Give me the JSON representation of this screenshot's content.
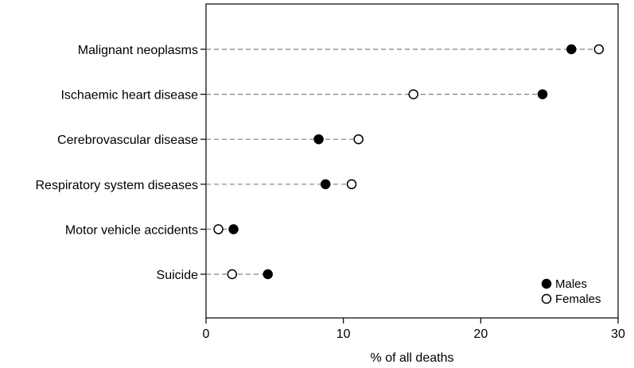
{
  "chart_data": {
    "type": "scatter",
    "categories": [
      "Malignant neoplasms",
      "Ischaemic heart disease",
      "Cerebrovascular disease",
      "Respiratory system diseases",
      "Motor vehicle accidents",
      "Suicide"
    ],
    "series": [
      {
        "name": "Males",
        "marker": "filled",
        "values": [
          26.6,
          24.5,
          8.2,
          8.7,
          2.0,
          4.5
        ]
      },
      {
        "name": "Females",
        "marker": "open",
        "values": [
          28.6,
          15.1,
          11.1,
          10.6,
          0.9,
          1.9
        ]
      }
    ],
    "xlabel": "% of all deaths",
    "xlim": [
      0,
      30
    ],
    "xticks": [
      0,
      10,
      20,
      30
    ],
    "grid": false,
    "connector": "dashed",
    "legend_position": "bottom-right",
    "colors": {
      "axis": "#000000",
      "connector": "#808080",
      "marker": "#000000"
    }
  }
}
